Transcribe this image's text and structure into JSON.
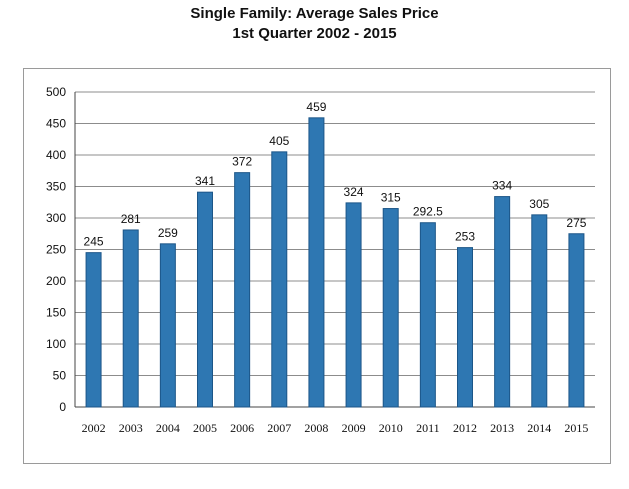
{
  "chart_data": {
    "type": "bar",
    "title": "Single Family:  Average Sales Price",
    "subtitle": "1st Quarter 2002 - 2015",
    "xlabel": "",
    "ylabel": "",
    "categories": [
      "2002",
      "2003",
      "2004",
      "2005",
      "2006",
      "2007",
      "2008",
      "2009",
      "2010",
      "2011",
      "2012",
      "2013",
      "2014",
      "2015"
    ],
    "values": [
      245,
      281,
      259,
      341,
      372,
      405,
      459,
      324,
      315,
      292.5,
      253,
      334,
      305,
      275
    ],
    "data_labels": [
      "245",
      "281",
      "259",
      "341",
      "372",
      "405",
      "459",
      "324",
      "315",
      "292.5",
      "253",
      "334",
      "305",
      "275"
    ],
    "ylim": [
      0,
      500
    ],
    "yticks": [
      0,
      50,
      100,
      150,
      200,
      250,
      300,
      350,
      400,
      450,
      500
    ],
    "grid": true,
    "legend": "none",
    "bar_color": "#2e77b2",
    "bar_edge_color": "#1c5688",
    "grid_color": "#8c8c8c"
  }
}
